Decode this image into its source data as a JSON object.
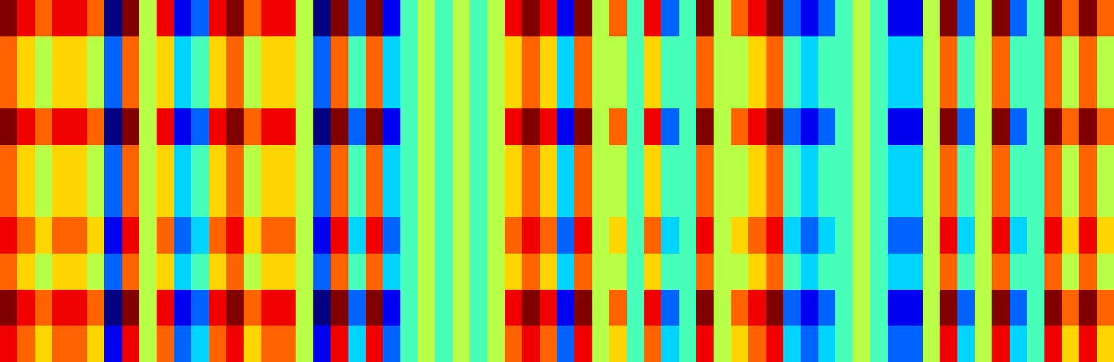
{
  "chart_data": {
    "type": "heatmap",
    "tick_labels": false,
    "color": "jet",
    "zlim": [
      0,
      9
    ],
    "cells": [
      [
        9,
        8,
        7,
        8,
        8,
        7,
        0,
        9,
        5,
        8,
        1,
        2,
        8,
        9,
        7,
        8,
        8,
        5,
        0,
        9,
        2,
        9,
        1,
        4,
        5,
        4,
        5,
        4,
        5,
        8,
        9,
        8,
        1,
        9,
        5,
        7,
        4,
        8,
        2,
        4,
        9,
        5,
        7,
        8,
        9,
        2,
        1,
        2,
        4,
        5,
        4,
        1,
        1,
        5,
        9,
        2,
        5,
        9,
        2,
        4,
        9,
        7,
        9,
        7
      ],
      [
        7,
        6,
        5,
        6,
        6,
        5,
        2,
        7,
        5,
        6,
        3,
        4,
        6,
        7,
        5,
        6,
        6,
        5,
        2,
        7,
        4,
        7,
        3,
        4,
        5,
        4,
        5,
        4,
        5,
        6,
        7,
        6,
        3,
        7,
        5,
        5,
        4,
        6,
        4,
        4,
        7,
        5,
        5,
        6,
        7,
        4,
        3,
        4,
        4,
        5,
        4,
        3,
        3,
        5,
        7,
        4,
        5,
        7,
        4,
        4,
        7,
        5,
        7,
        5
      ],
      [
        7,
        6,
        5,
        6,
        6,
        5,
        2,
        7,
        5,
        6,
        3,
        4,
        6,
        7,
        5,
        6,
        6,
        5,
        2,
        7,
        4,
        7,
        3,
        4,
        5,
        4,
        5,
        4,
        5,
        6,
        7,
        6,
        3,
        7,
        5,
        5,
        4,
        6,
        4,
        4,
        7,
        5,
        5,
        6,
        7,
        4,
        3,
        4,
        4,
        5,
        4,
        3,
        3,
        5,
        7,
        4,
        5,
        7,
        4,
        4,
        7,
        5,
        7,
        5
      ],
      [
        9,
        8,
        7,
        8,
        8,
        7,
        0,
        9,
        5,
        8,
        1,
        2,
        8,
        9,
        7,
        8,
        8,
        5,
        0,
        9,
        2,
        9,
        1,
        4,
        5,
        4,
        5,
        4,
        5,
        8,
        9,
        8,
        1,
        9,
        5,
        7,
        4,
        8,
        2,
        4,
        9,
        5,
        7,
        8,
        9,
        2,
        1,
        2,
        4,
        5,
        4,
        1,
        1,
        5,
        9,
        2,
        5,
        9,
        2,
        4,
        9,
        7,
        9,
        7
      ],
      [
        7,
        6,
        5,
        6,
        6,
        5,
        2,
        7,
        5,
        6,
        3,
        4,
        6,
        7,
        5,
        6,
        6,
        5,
        2,
        7,
        4,
        7,
        3,
        4,
        5,
        4,
        5,
        4,
        5,
        6,
        7,
        6,
        3,
        7,
        5,
        5,
        4,
        6,
        4,
        4,
        7,
        5,
        5,
        6,
        7,
        4,
        3,
        4,
        4,
        5,
        4,
        3,
        3,
        5,
        7,
        4,
        5,
        7,
        4,
        4,
        7,
        5,
        7,
        5
      ],
      [
        7,
        6,
        5,
        6,
        6,
        5,
        2,
        7,
        5,
        6,
        3,
        4,
        6,
        7,
        5,
        6,
        6,
        5,
        2,
        7,
        4,
        7,
        3,
        4,
        5,
        4,
        5,
        4,
        5,
        6,
        7,
        6,
        3,
        7,
        5,
        5,
        4,
        6,
        4,
        4,
        7,
        5,
        5,
        6,
        7,
        4,
        3,
        4,
        4,
        5,
        4,
        3,
        3,
        5,
        7,
        4,
        5,
        7,
        4,
        4,
        7,
        5,
        7,
        5
      ],
      [
        8,
        7,
        6,
        7,
        7,
        6,
        1,
        8,
        5,
        7,
        2,
        3,
        7,
        8,
        6,
        7,
        7,
        5,
        1,
        8,
        3,
        8,
        2,
        4,
        5,
        4,
        5,
        4,
        5,
        7,
        8,
        7,
        2,
        8,
        5,
        6,
        4,
        7,
        3,
        4,
        8,
        5,
        6,
        7,
        8,
        3,
        2,
        3,
        4,
        5,
        4,
        2,
        2,
        5,
        8,
        3,
        5,
        8,
        3,
        4,
        8,
        6,
        8,
        6
      ],
      [
        7,
        6,
        5,
        6,
        6,
        5,
        2,
        7,
        5,
        6,
        3,
        4,
        6,
        7,
        5,
        6,
        6,
        5,
        2,
        7,
        4,
        7,
        3,
        4,
        5,
        4,
        5,
        4,
        5,
        6,
        7,
        6,
        3,
        7,
        5,
        5,
        4,
        6,
        4,
        4,
        7,
        5,
        5,
        6,
        7,
        4,
        3,
        4,
        4,
        5,
        4,
        3,
        3,
        5,
        7,
        4,
        5,
        7,
        4,
        4,
        7,
        5,
        7,
        5
      ],
      [
        9,
        8,
        7,
        8,
        8,
        7,
        0,
        9,
        5,
        8,
        1,
        2,
        8,
        9,
        7,
        8,
        8,
        5,
        0,
        9,
        2,
        9,
        1,
        4,
        5,
        4,
        5,
        4,
        5,
        8,
        9,
        8,
        1,
        9,
        5,
        7,
        4,
        8,
        2,
        4,
        9,
        5,
        7,
        8,
        9,
        2,
        1,
        2,
        4,
        5,
        4,
        1,
        1,
        5,
        9,
        2,
        5,
        9,
        2,
        4,
        9,
        7,
        9,
        7
      ],
      [
        8,
        7,
        6,
        7,
        7,
        6,
        1,
        8,
        5,
        7,
        2,
        3,
        7,
        8,
        6,
        7,
        7,
        5,
        1,
        8,
        3,
        8,
        2,
        4,
        5,
        4,
        5,
        4,
        5,
        7,
        8,
        7,
        2,
        8,
        5,
        6,
        4,
        7,
        3,
        4,
        8,
        5,
        6,
        7,
        8,
        3,
        2,
        3,
        4,
        5,
        4,
        2,
        2,
        5,
        8,
        3,
        5,
        8,
        3,
        4,
        8,
        6,
        8,
        6
      ]
    ]
  }
}
